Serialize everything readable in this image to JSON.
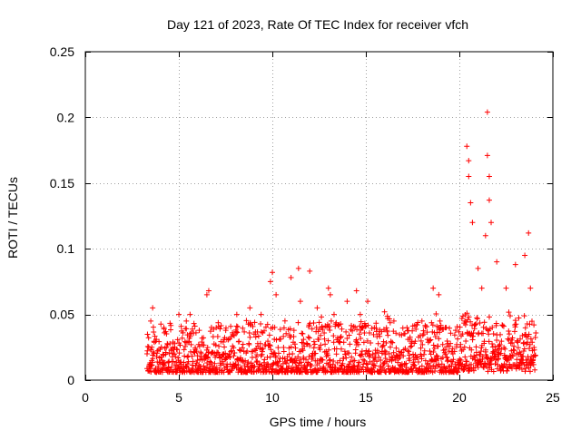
{
  "chart_data": {
    "type": "scatter",
    "title": "Day 121 of 2023, Rate Of TEC Index for receiver vfch",
    "xlabel": "GPS time / hours",
    "ylabel": "ROTI / TECUs",
    "xlim": [
      0,
      25
    ],
    "ylim": [
      0,
      0.25
    ],
    "grid": true,
    "x_ticks": [
      0,
      5,
      10,
      15,
      20,
      25
    ],
    "x_tick_labels": [
      "0",
      "5",
      "10",
      "15",
      "20",
      "25"
    ],
    "y_ticks": [
      0,
      0.05,
      0.1,
      0.15,
      0.2,
      0.25
    ],
    "y_tick_labels": [
      "0",
      "0.05",
      "0.1",
      "0.15",
      "0.2",
      "0.25"
    ],
    "marker": "+",
    "series_color": "#ff0000",
    "data_range": {
      "x_start": 3.3,
      "x_end": 24.1
    },
    "series": [
      {
        "name": "ROTI",
        "x": [
          3.3,
          3.5,
          3.6,
          4.2,
          5.0,
          5.4,
          5.6,
          6.5,
          6.6,
          7.0,
          8.1,
          8.8,
          9.4,
          9.9,
          10.0,
          10.2,
          11.0,
          11.4,
          11.5,
          12.0,
          12.4,
          13.0,
          13.1,
          13.3,
          14.0,
          14.5,
          14.7,
          15.1,
          16.0,
          16.5,
          17.2,
          18.0,
          18.6,
          18.9,
          19.3,
          20.3,
          20.4,
          20.5,
          20.5,
          20.6,
          20.7,
          21.0,
          21.2,
          21.4,
          21.5,
          21.5,
          21.6,
          21.6,
          21.7,
          22.0,
          22.5,
          23.0,
          23.5,
          23.7,
          23.8
        ],
        "y": [
          0.02,
          0.045,
          0.055,
          0.04,
          0.05,
          0.045,
          0.05,
          0.065,
          0.068,
          0.04,
          0.05,
          0.055,
          0.05,
          0.075,
          0.082,
          0.065,
          0.078,
          0.085,
          0.06,
          0.083,
          0.055,
          0.07,
          0.065,
          0.05,
          0.06,
          0.068,
          0.05,
          0.06,
          0.052,
          0.045,
          0.04,
          0.045,
          0.07,
          0.065,
          0.04,
          0.045,
          0.178,
          0.167,
          0.155,
          0.135,
          0.12,
          0.085,
          0.07,
          0.11,
          0.204,
          0.171,
          0.155,
          0.137,
          0.12,
          0.09,
          0.07,
          0.088,
          0.095,
          0.112,
          0.07
        ]
      }
    ]
  }
}
